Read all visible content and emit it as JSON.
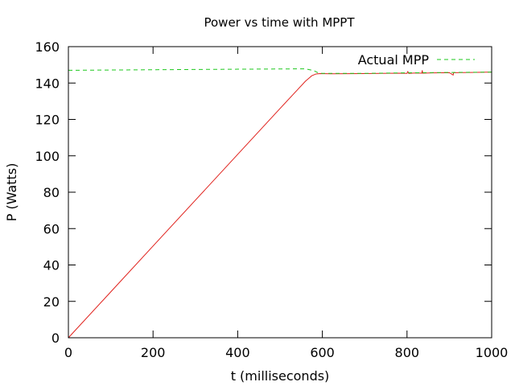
{
  "chart_data": {
    "type": "line",
    "title": "Power vs time with MPPT",
    "xlabel": "t (milliseconds)",
    "ylabel": "P (Watts)",
    "xlim": [
      0,
      1000
    ],
    "ylim": [
      0,
      160
    ],
    "xticks": [
      0,
      200,
      400,
      600,
      800,
      1000
    ],
    "yticks": [
      0,
      20,
      40,
      60,
      80,
      100,
      120,
      140,
      160
    ],
    "grid": false,
    "legend_position": "top-right",
    "series": [
      {
        "name": "",
        "color": "#e0201b",
        "style": "solid",
        "x": [
          0,
          100,
          200,
          300,
          400,
          500,
          540,
          560,
          575,
          585,
          595,
          620,
          700,
          780,
          800,
          802,
          804,
          820,
          835,
          836,
          837,
          860,
          900,
          909,
          910,
          911,
          950,
          1000
        ],
        "y": [
          0,
          25.2,
          50.4,
          75.6,
          100.8,
          126.0,
          136.0,
          141.0,
          144.0,
          145.0,
          145.2,
          145.1,
          145.2,
          145.4,
          145.3,
          146.3,
          145.3,
          145.5,
          145.4,
          147.0,
          145.4,
          145.6,
          145.7,
          144.4,
          145.7,
          145.7,
          145.8,
          146.0
        ]
      },
      {
        "name": "Actual MPP",
        "color": "#1ec81e",
        "style": "dashed",
        "x": [
          0,
          200,
          400,
          560,
          580,
          590,
          600,
          700,
          800,
          900,
          1000
        ],
        "y": [
          147.0,
          147.3,
          147.6,
          147.8,
          146.8,
          145.6,
          145.3,
          145.3,
          145.6,
          145.8,
          146.0
        ]
      }
    ]
  }
}
